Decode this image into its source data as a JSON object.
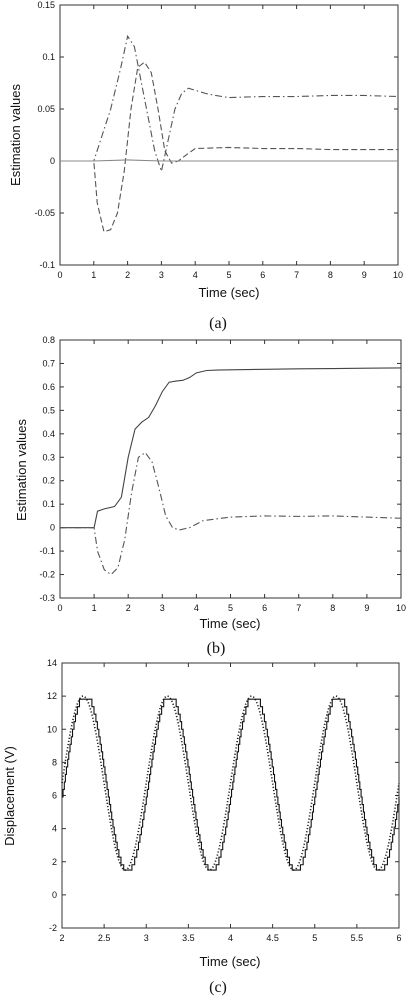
{
  "chart_data": [
    {
      "type": "line",
      "caption": "(a)",
      "xlabel": "Time (sec)",
      "ylabel": "Estimation values",
      "xlim": [
        0,
        10
      ],
      "ylim": [
        -0.1,
        0.15
      ],
      "xticks": [
        0,
        1,
        2,
        3,
        4,
        5,
        6,
        7,
        8,
        9,
        10
      ],
      "yticks": [
        -0.1,
        -0.05,
        0,
        0.05,
        0.1,
        0.15
      ],
      "ytick_labels": [
        "-0.1",
        "-0.05",
        "0",
        "0.05",
        "0.1",
        "0.15"
      ],
      "grid": false,
      "series": [
        {
          "style": "dashdot",
          "color": "#555555",
          "x": [
            0,
            1.0,
            1.2,
            1.5,
            1.8,
            2.0,
            2.2,
            2.5,
            2.8,
            3.0,
            3.2,
            3.4,
            3.6,
            3.8,
            4.0,
            4.3,
            4.6,
            5,
            6,
            7,
            8,
            9,
            10
          ],
          "y": [
            0,
            0,
            0.02,
            0.05,
            0.09,
            0.12,
            0.11,
            0.06,
            0.01,
            -0.01,
            0.02,
            0.05,
            0.065,
            0.07,
            0.068,
            0.065,
            0.063,
            0.061,
            0.062,
            0.062,
            0.063,
            0.063,
            0.062
          ]
        },
        {
          "style": "dashed",
          "color": "#555555",
          "x": [
            0,
            1.0,
            1.1,
            1.3,
            1.5,
            1.7,
            1.9,
            2.1,
            2.3,
            2.5,
            2.7,
            2.9,
            3.1,
            3.3,
            3.5,
            3.7,
            4.0,
            5,
            6,
            7,
            8,
            9,
            10
          ],
          "y": [
            0,
            0,
            -0.04,
            -0.068,
            -0.066,
            -0.05,
            -0.01,
            0.05,
            0.09,
            0.095,
            0.085,
            0.05,
            0.01,
            -0.002,
            0,
            0.005,
            0.012,
            0.013,
            0.012,
            0.012,
            0.011,
            0.011,
            0.011
          ]
        },
        {
          "style": "solid",
          "color": "#888888",
          "x": [
            0,
            1,
            2,
            3,
            4,
            5,
            6,
            7,
            8,
            9,
            10
          ],
          "y": [
            0,
            0,
            0.001,
            0,
            0,
            0,
            0,
            0,
            0,
            0,
            0
          ]
        }
      ]
    },
    {
      "type": "line",
      "caption": "(b)",
      "xlabel": "Time (sec)",
      "ylabel": "Estimation values",
      "xlim": [
        0,
        10
      ],
      "ylim": [
        -0.3,
        0.8
      ],
      "xticks": [
        0,
        1,
        2,
        3,
        4,
        5,
        6,
        7,
        8,
        9,
        10
      ],
      "yticks": [
        -0.3,
        -0.2,
        -0.1,
        0,
        0.1,
        0.2,
        0.3,
        0.4,
        0.5,
        0.6,
        0.7,
        0.8
      ],
      "ytick_labels": [
        "-0.3",
        "-0.2",
        "-0.1",
        "0",
        "0.1",
        "0.2",
        "0.3",
        "0.4",
        "0.5",
        "0.6",
        "0.7",
        "0.8"
      ],
      "grid": false,
      "series": [
        {
          "style": "solid",
          "color": "#444444",
          "x": [
            0,
            1.0,
            1.1,
            1.3,
            1.6,
            1.8,
            2.0,
            2.2,
            2.4,
            2.6,
            2.8,
            3.0,
            3.2,
            3.4,
            3.6,
            3.8,
            4.0,
            4.3,
            4.6,
            5,
            6,
            7,
            8,
            9,
            10
          ],
          "y": [
            0,
            0,
            0.07,
            0.08,
            0.09,
            0.13,
            0.3,
            0.42,
            0.45,
            0.47,
            0.52,
            0.58,
            0.62,
            0.625,
            0.628,
            0.64,
            0.66,
            0.67,
            0.672,
            0.673,
            0.675,
            0.677,
            0.678,
            0.68,
            0.681
          ]
        },
        {
          "style": "dashdot",
          "color": "#555555",
          "x": [
            0,
            1.0,
            1.1,
            1.3,
            1.5,
            1.7,
            1.9,
            2.1,
            2.3,
            2.5,
            2.7,
            2.9,
            3.1,
            3.3,
            3.5,
            3.8,
            4.2,
            5,
            6,
            7,
            8,
            9,
            10
          ],
          "y": [
            0,
            0,
            -0.1,
            -0.18,
            -0.2,
            -0.17,
            -0.05,
            0.15,
            0.3,
            0.32,
            0.28,
            0.17,
            0.05,
            0.0,
            -0.01,
            0.0,
            0.03,
            0.045,
            0.05,
            0.048,
            0.05,
            0.045,
            0.04
          ]
        }
      ]
    },
    {
      "type": "line",
      "caption": "(c)",
      "xlabel": "Time (sec)",
      "ylabel": "Displacement (V)",
      "xlim": [
        2,
        6
      ],
      "ylim": [
        -2,
        14
      ],
      "xticks": [
        2,
        2.5,
        3,
        3.5,
        4,
        4.5,
        5,
        5.5,
        6
      ],
      "xtick_labels": [
        "2",
        "2.5",
        "3",
        "3.5",
        "4",
        "4.5",
        "5",
        "5.5",
        "6"
      ],
      "yticks": [
        -2,
        0,
        2,
        4,
        6,
        8,
        10,
        12,
        14
      ],
      "ytick_labels": [
        "-2",
        "0",
        "2",
        "4",
        "6",
        "8",
        "10",
        "12",
        "14"
      ],
      "grid": false,
      "series": [
        {
          "style": "dotted",
          "color": "#222222",
          "function": "6.75 + 5.25*sin(2*pi*(t - 2))",
          "period": 1.0,
          "offset": 6.75,
          "amplitude": 5.25
        },
        {
          "style": "solid",
          "color": "#111111",
          "function": "stepped tracking response with flat tops at 12 and flat bottoms at 1.5",
          "period": 1.0,
          "top": 12,
          "bottom": 1.5
        }
      ]
    }
  ]
}
